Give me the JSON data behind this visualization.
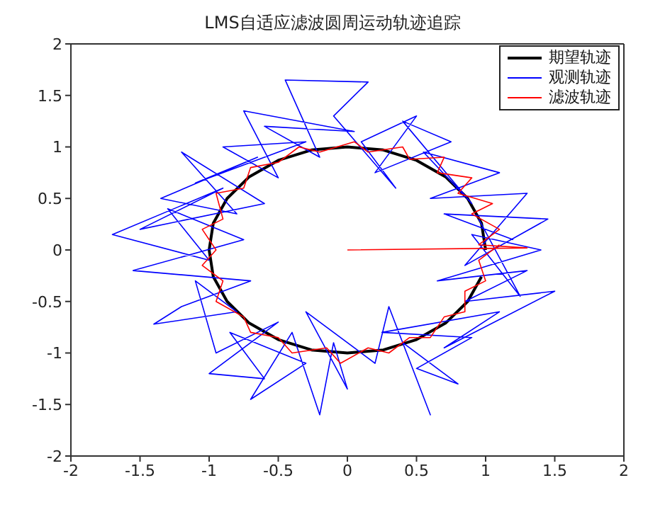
{
  "chart_data": {
    "type": "line",
    "title": "LMS自适应滤波圆周运动轨迹追踪",
    "xlim": [
      -2,
      2
    ],
    "xticks": [
      -2,
      -1.5,
      -1,
      -0.5,
      0,
      0.5,
      1,
      1.5,
      2
    ],
    "ylim": [
      -2,
      2
    ],
    "yticks": [
      -2,
      -1.5,
      -1,
      -0.5,
      0,
      0.5,
      1,
      1.5,
      2
    ],
    "grid": false,
    "legend": "top right",
    "marker": "none",
    "line_style": "solid",
    "series": [
      {
        "name": "期望轨迹",
        "color": "#000000",
        "x": [
          1,
          0.97,
          0.87,
          0.71,
          0.5,
          0.26,
          0,
          -0.26,
          -0.5,
          -0.71,
          -0.87,
          -0.97,
          -1,
          -0.97,
          -0.87,
          -0.71,
          -0.5,
          -0.26,
          0,
          0.26,
          0.5,
          0.71,
          0.87,
          0.97
        ],
        "values": [
          0,
          0.26,
          0.5,
          0.71,
          0.87,
          0.97,
          1,
          0.97,
          0.87,
          0.71,
          0.5,
          0.26,
          0,
          -0.26,
          -0.5,
          -0.71,
          -0.87,
          -0.97,
          -1,
          -0.97,
          -0.87,
          -0.71,
          -0.5,
          -0.26
        ]
      },
      {
        "name": "观测轨迹",
        "color": "#0000ff",
        "x": [
          1.2,
          0.7,
          1.45,
          0.85,
          1.3,
          0.6,
          1.1,
          0.55,
          0.9,
          0.4,
          0.75,
          0.2,
          0.5,
          0.1,
          0.35,
          -0.1,
          0.15,
          -0.45,
          -0.2,
          -0.6,
          0.05,
          -0.75,
          -0.5,
          -0.9,
          -0.3,
          -1.1,
          -0.65,
          -1.35,
          -0.8,
          -1.2,
          -0.6,
          -1.5,
          -0.9,
          -1.7,
          -1.0,
          -1.3,
          -0.75,
          -1.55,
          -0.7,
          -1.2,
          -1.4,
          -0.8,
          -1.1,
          -0.95,
          -0.5,
          -1.0,
          -0.6,
          -0.85,
          -0.3,
          -0.7,
          -0.4,
          -0.2,
          -0.1,
          0.0,
          -0.3,
          0.2,
          0.3,
          0.6,
          0.4,
          0.8,
          0.5,
          0.9,
          0.25,
          1.1,
          0.7,
          1.5,
          0.85,
          1.3,
          0.65,
          1.4,
          0.9,
          1.25,
          0.95
        ],
        "values": [
          0.1,
          0.35,
          0.3,
          -0.15,
          0.55,
          0.5,
          0.75,
          0.95,
          0.45,
          1.25,
          1.05,
          0.75,
          1.3,
          1.05,
          0.6,
          1.3,
          1.63,
          1.65,
          0.9,
          1.2,
          1.15,
          1.35,
          0.7,
          1.0,
          1.05,
          0.65,
          0.9,
          0.5,
          0.35,
          0.95,
          0.45,
          0.2,
          0.6,
          0.15,
          -0.1,
          0.4,
          0.1,
          -0.2,
          -0.3,
          -0.55,
          -0.72,
          -0.6,
          -0.3,
          -1.0,
          -0.7,
          -1.2,
          -1.25,
          -0.8,
          -1.1,
          -1.45,
          -0.8,
          -1.6,
          -0.9,
          -1.35,
          -0.6,
          -1.1,
          -0.55,
          -1.6,
          -0.9,
          -1.3,
          -1.15,
          -0.85,
          -0.8,
          -0.6,
          -0.95,
          -0.4,
          -0.5,
          -0.2,
          -0.3,
          0.0,
          0.15,
          -0.45,
          0.3
        ]
      },
      {
        "name": "滤波轨迹",
        "color": "#ff0000",
        "x": [
          0,
          1.3,
          0.95,
          1.1,
          0.9,
          1.05,
          0.8,
          0.9,
          0.65,
          0.7,
          0.45,
          0.4,
          0.15,
          0.05,
          -0.2,
          -0.35,
          -0.5,
          -0.7,
          -0.75,
          -0.95,
          -0.9,
          -1.05,
          -0.95,
          -1.05,
          -0.9,
          -0.95,
          -0.75,
          -0.7,
          -0.5,
          -0.4,
          -0.15,
          -0.05,
          0.15,
          0.3,
          0.45,
          0.6,
          0.7,
          0.85,
          0.85,
          1.0,
          0.95,
          1.1
        ],
        "values": [
          0,
          0.02,
          0.05,
          0.2,
          0.35,
          0.45,
          0.55,
          0.7,
          0.75,
          0.9,
          0.88,
          1.0,
          0.95,
          1.05,
          0.95,
          1.0,
          0.85,
          0.8,
          0.6,
          0.55,
          0.3,
          0.2,
          0.0,
          -0.15,
          -0.3,
          -0.5,
          -0.65,
          -0.8,
          -0.85,
          -1.0,
          -0.95,
          -1.1,
          -0.95,
          -1.0,
          -0.85,
          -0.85,
          -0.65,
          -0.6,
          -0.4,
          -0.3,
          -0.1,
          0.05
        ]
      }
    ]
  }
}
